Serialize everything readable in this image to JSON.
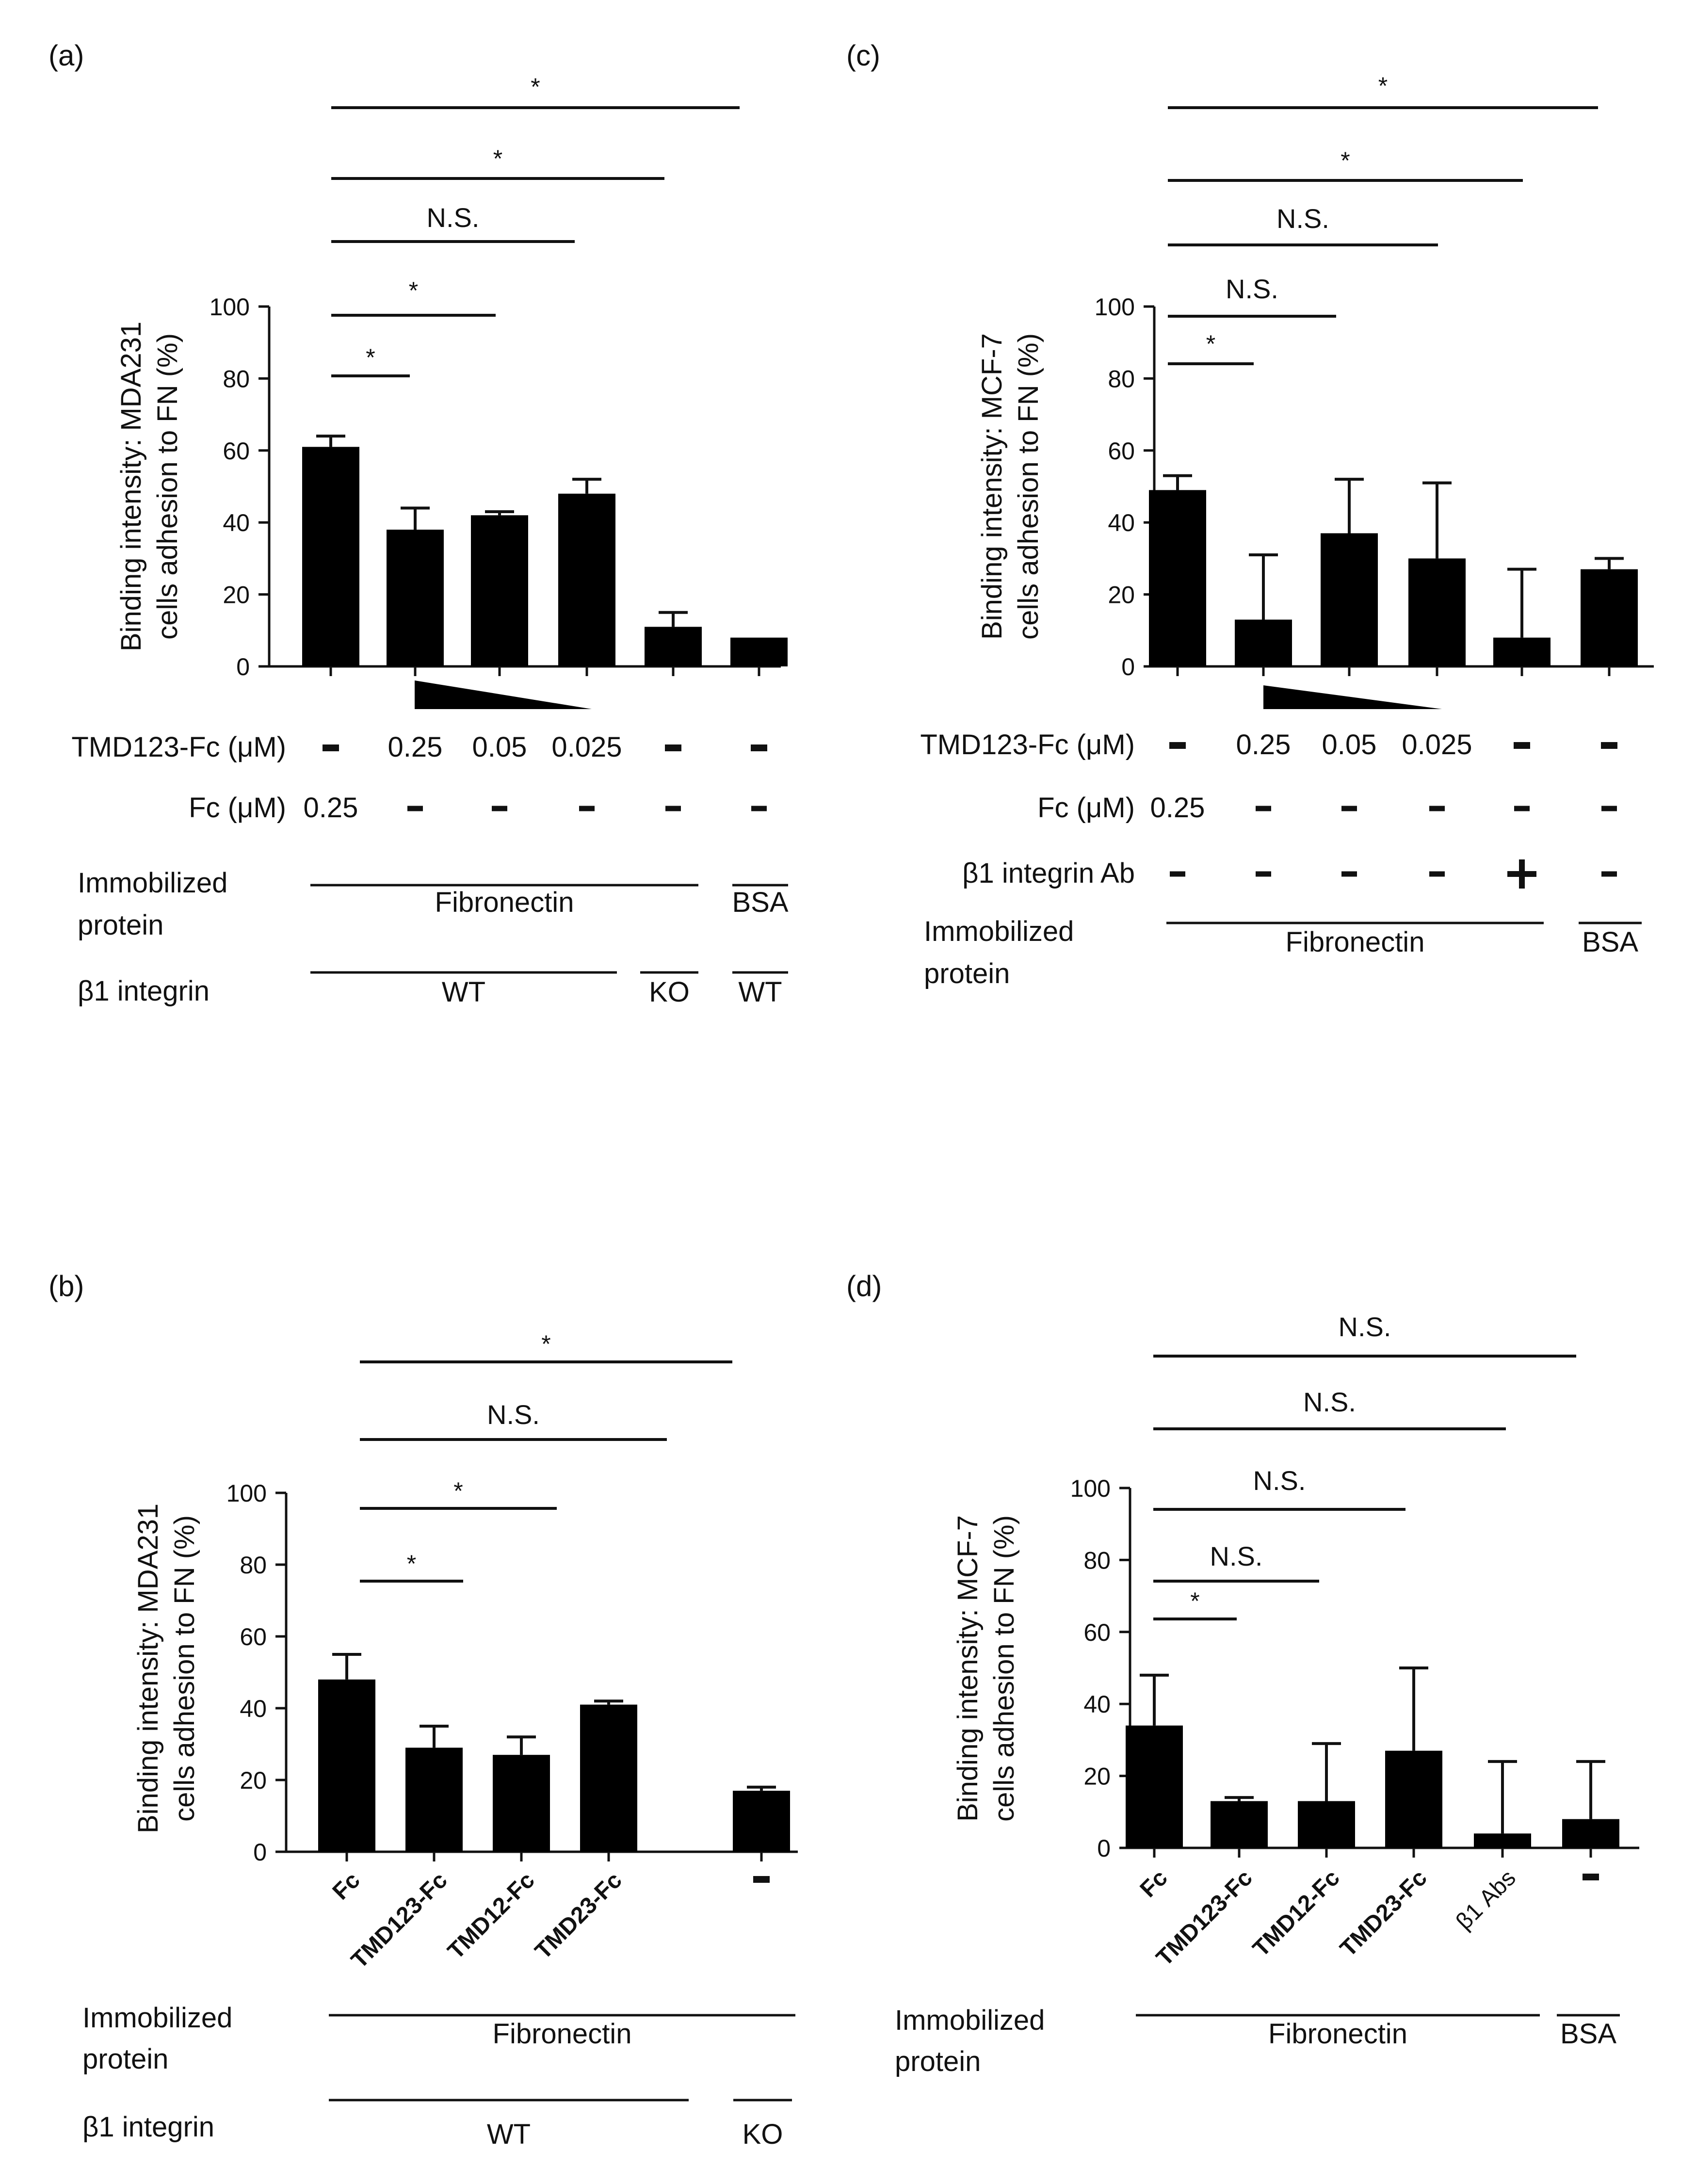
{
  "colors": {
    "bar": "#000000",
    "ink": "#111111",
    "background": "#ffffff"
  },
  "chart_data": [
    {
      "id": "a",
      "type": "bar",
      "panel_label": "(a)",
      "ylabel": [
        "Binding intensity: MDA231",
        "cells adhesion to FN (%)"
      ],
      "ylim": [
        0,
        100
      ],
      "yticks": [
        0,
        20,
        40,
        60,
        80,
        100
      ],
      "values": [
        61,
        38,
        42,
        48,
        11,
        8
      ],
      "errors": [
        3,
        6,
        1,
        4,
        4,
        0
      ],
      "significance": [
        {
          "from": 0,
          "to": 5,
          "label": "*"
        },
        {
          "from": 0,
          "to": 4,
          "label": "*"
        },
        {
          "from": 0,
          "to": 3,
          "label": "N.S."
        },
        {
          "from": 0,
          "to": 2,
          "label": "*"
        },
        {
          "from": 0,
          "to": 1,
          "label": "*"
        }
      ],
      "conditions": [
        {
          "label": "TMD123-Fc (μM)",
          "values": [
            "-",
            "0.25",
            "0.05",
            "0.025",
            "-",
            "-"
          ]
        },
        {
          "label": "Fc (μM)",
          "values": [
            "0.25",
            "-",
            "-",
            "-",
            "-",
            "-"
          ]
        }
      ],
      "groups": [
        {
          "label": [
            "Immobilized",
            "protein"
          ],
          "segments": [
            {
              "text": "Fibronectin",
              "from": 0,
              "to": 4
            },
            {
              "text": "BSA",
              "from": 5,
              "to": 5
            }
          ]
        },
        {
          "label": [
            "β1 integrin"
          ],
          "segments": [
            {
              "text": "WT",
              "from": 0,
              "to": 3
            },
            {
              "text": "KO",
              "from": 4,
              "to": 4
            },
            {
              "text": "WT",
              "from": 5,
              "to": 5
            }
          ]
        }
      ]
    },
    {
      "id": "c",
      "type": "bar",
      "panel_label": "(c)",
      "ylabel": [
        "Binding intensity: MCF-7",
        "cells adhesion to FN (%)"
      ],
      "ylim": [
        0,
        100
      ],
      "yticks": [
        0,
        20,
        40,
        60,
        80,
        100
      ],
      "values": [
        49,
        13,
        37,
        30,
        8,
        27
      ],
      "errors": [
        4,
        18,
        15,
        21,
        19,
        3
      ],
      "significance": [
        {
          "from": 0,
          "to": 5,
          "label": "*"
        },
        {
          "from": 0,
          "to": 4,
          "label": "*"
        },
        {
          "from": 0,
          "to": 3,
          "label": "N.S."
        },
        {
          "from": 0,
          "to": 2,
          "label": "N.S."
        },
        {
          "from": 0,
          "to": 1,
          "label": "*"
        }
      ],
      "conditions": [
        {
          "label": "TMD123-Fc (μM)",
          "values": [
            "-",
            "0.25",
            "0.05",
            "0.025",
            "-",
            "-"
          ]
        },
        {
          "label": "Fc (μM)",
          "values": [
            "0.25",
            "-",
            "-",
            "-",
            "-",
            "-"
          ]
        },
        {
          "label": "β1 integrin Ab",
          "values": [
            "-",
            "-",
            "-",
            "-",
            "+",
            "-"
          ]
        }
      ],
      "groups": [
        {
          "label": [
            "Immobilized",
            "protein"
          ],
          "segments": [
            {
              "text": "Fibronectin",
              "from": 0,
              "to": 4
            },
            {
              "text": "BSA",
              "from": 5,
              "to": 5
            }
          ]
        }
      ]
    },
    {
      "id": "b",
      "type": "bar",
      "panel_label": "(b)",
      "ylabel": [
        "Binding intensity: MDA231",
        "cells adhesion to FN (%)"
      ],
      "ylim": [
        0,
        100
      ],
      "yticks": [
        0,
        20,
        40,
        60,
        80,
        100
      ],
      "categories": [
        "Fc",
        "TMD123-Fc",
        "TMD12-Fc",
        "TMD23-Fc",
        "-"
      ],
      "values": [
        48,
        29,
        27,
        41,
        17
      ],
      "errors": [
        7,
        6,
        5,
        1,
        1
      ],
      "significance": [
        {
          "from": 0,
          "to": 4,
          "label": "*"
        },
        {
          "from": 0,
          "to": 3,
          "label": "N.S."
        },
        {
          "from": 0,
          "to": 2,
          "label": "*"
        },
        {
          "from": 0,
          "to": 1,
          "label": "*"
        }
      ],
      "groups": [
        {
          "label": [
            "Immobilized",
            "protein"
          ],
          "segments": [
            {
              "text": "Fibronectin",
              "from": 0,
              "to": 4
            }
          ]
        },
        {
          "label": [
            "β1 integrin"
          ],
          "segments": [
            {
              "text": "WT",
              "from": 0,
              "to": 3
            },
            {
              "text": "KO",
              "from": 4,
              "to": 4
            }
          ]
        }
      ]
    },
    {
      "id": "d",
      "type": "bar",
      "panel_label": "(d)",
      "ylabel": [
        "Binding intensity: MCF-7",
        "cells adhesion to FN (%)"
      ],
      "ylim": [
        0,
        100
      ],
      "yticks": [
        0,
        20,
        40,
        60,
        80,
        100
      ],
      "categories": [
        "Fc",
        "TMD123-Fc",
        "TMD12-Fc",
        "TMD23-Fc",
        "β1 Abs",
        "-"
      ],
      "values": [
        34,
        13,
        13,
        27,
        4,
        8
      ],
      "errors": [
        14,
        1,
        16,
        23,
        20,
        16
      ],
      "significance": [
        {
          "from": 0,
          "to": 5,
          "label": "N.S."
        },
        {
          "from": 0,
          "to": 4,
          "label": "N.S."
        },
        {
          "from": 0,
          "to": 3,
          "label": "N.S."
        },
        {
          "from": 0,
          "to": 2,
          "label": "N.S."
        },
        {
          "from": 0,
          "to": 1,
          "label": "*"
        }
      ],
      "groups": [
        {
          "label": [
            "Immobilized",
            "protein"
          ],
          "segments": [
            {
              "text": "Fibronectin",
              "from": 0,
              "to": 4
            },
            {
              "text": "BSA",
              "from": 5,
              "to": 5
            }
          ]
        }
      ]
    }
  ]
}
